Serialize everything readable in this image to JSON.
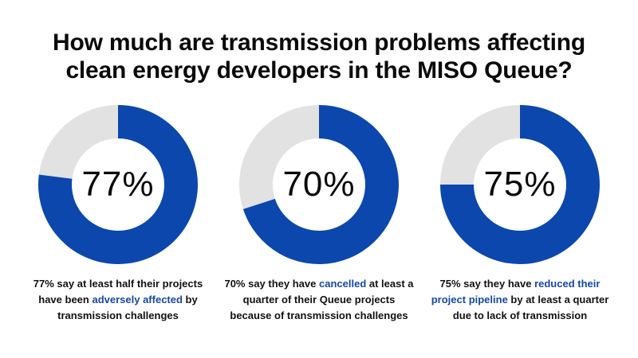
{
  "chart_data": {
    "type": "pie",
    "title": "How much are transmission problems affecting clean energy developers in the MISO Queue?",
    "title_lines": [
      "How much are transmission problems affecting",
      "clean energy developers in the MISO Queue?"
    ],
    "series": [
      {
        "name": "adversely-affected",
        "value": 77,
        "label": "77%",
        "caption": {
          "before": "77% say at least half their projects have been ",
          "highlight": "adversely affected",
          "after": " by transmission challenges"
        }
      },
      {
        "name": "cancelled",
        "value": 70,
        "label": "70%",
        "caption": {
          "before": "70% say they have ",
          "highlight": "cancelled",
          "after": " at least a quarter of their Queue projects because of transmission challenges"
        }
      },
      {
        "name": "reduced-pipeline",
        "value": 75,
        "label": "75%",
        "caption": {
          "before": "75% say they have ",
          "highlight": "reduced their project pipeline",
          "after": " by at least a quarter due to lack of transmission"
        }
      }
    ],
    "max": 100
  },
  "colors": {
    "filled": "#0c47ad",
    "remainder": "#e2e2e2",
    "highlight_text": "#1848a8"
  }
}
